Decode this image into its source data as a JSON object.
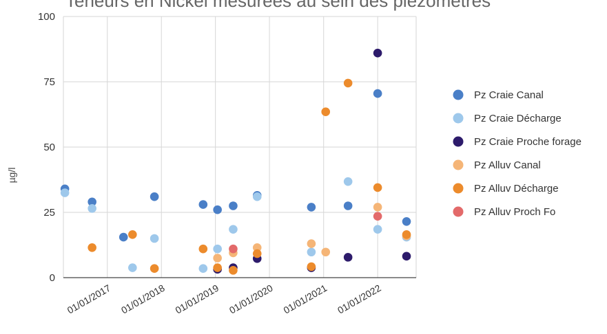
{
  "chart_data": {
    "type": "scatter",
    "title": "Teneurs en Nickel mesurées au sein des piézomètres",
    "xlabel": "",
    "ylabel": "µg/l",
    "ylim": [
      0,
      100
    ],
    "yticks": [
      0,
      25,
      50,
      75,
      100
    ],
    "xticks": [
      "01/01/2017",
      "01/01/2018",
      "01/01/2019",
      "01/01/2020",
      "01/01/2021",
      "01/01/2022"
    ],
    "xlim": [
      "2016-03-10",
      "2022-09-18"
    ],
    "grid": true,
    "legend_position": "right",
    "series": [
      {
        "name": "Pz Craie Canal",
        "color": "#4a7fc7",
        "points": [
          [
            "2016-03-20",
            34
          ],
          [
            "2016-09-20",
            29
          ],
          [
            "2017-04-20",
            15.5
          ],
          [
            "2017-11-15",
            31
          ],
          [
            "2018-10-10",
            28
          ],
          [
            "2019-01-15",
            26
          ],
          [
            "2019-05-01",
            27.5
          ],
          [
            "2019-10-10",
            31.5
          ],
          [
            "2020-10-10",
            27
          ],
          [
            "2021-06-15",
            27.5
          ],
          [
            "2022-01-01",
            70.5
          ],
          [
            "2022-07-15",
            21.5
          ]
        ]
      },
      {
        "name": "Pz Craie Décharge",
        "color": "#9ec8eb",
        "points": [
          [
            "2016-03-20",
            32.5
          ],
          [
            "2016-09-20",
            26.5
          ],
          [
            "2017-06-20",
            3.8
          ],
          [
            "2017-11-15",
            15
          ],
          [
            "2018-10-10",
            3.5
          ],
          [
            "2019-01-15",
            11
          ],
          [
            "2019-05-01",
            18.5
          ],
          [
            "2019-10-10",
            31
          ],
          [
            "2020-10-10",
            9.8
          ],
          [
            "2021-06-15",
            36.8
          ],
          [
            "2022-01-01",
            18.5
          ],
          [
            "2022-07-15",
            15.5
          ]
        ]
      },
      {
        "name": "Pz Craie Proche forage",
        "color": "#2d1b6b",
        "points": [
          [
            "2019-01-15",
            3.2
          ],
          [
            "2019-05-01",
            3.8
          ],
          [
            "2019-10-10",
            7.3
          ],
          [
            "2020-10-10",
            3.8
          ],
          [
            "2021-06-15",
            7.8
          ],
          [
            "2022-01-01",
            86
          ],
          [
            "2022-07-15",
            8.2
          ]
        ]
      },
      {
        "name": "Pz Alluv Canal",
        "color": "#f5b577",
        "points": [
          [
            "2019-01-15",
            7.5
          ],
          [
            "2019-05-01",
            9.5
          ],
          [
            "2019-10-10",
            11.5
          ],
          [
            "2020-10-10",
            13
          ],
          [
            "2021-01-15",
            9.8
          ],
          [
            "2022-01-01",
            27
          ],
          [
            "2022-07-15",
            16
          ]
        ]
      },
      {
        "name": "Pz Alluv Décharge",
        "color": "#ec8b2c",
        "points": [
          [
            "2016-09-20",
            11.5
          ],
          [
            "2017-06-20",
            16.5
          ],
          [
            "2017-11-15",
            3.5
          ],
          [
            "2018-10-10",
            11
          ],
          [
            "2019-01-15",
            3.8
          ],
          [
            "2019-05-01",
            2.8
          ],
          [
            "2019-10-10",
            9.2
          ],
          [
            "2020-10-10",
            4.2
          ],
          [
            "2021-01-15",
            63.5
          ],
          [
            "2021-06-15",
            74.5
          ],
          [
            "2022-01-01",
            34.5
          ],
          [
            "2022-07-15",
            16.5
          ]
        ]
      },
      {
        "name": "Pz Alluv Proch Fo",
        "color": "#e36a6a",
        "points": [
          [
            "2019-05-01",
            11
          ],
          [
            "2022-01-01",
            23.5
          ]
        ]
      }
    ]
  }
}
